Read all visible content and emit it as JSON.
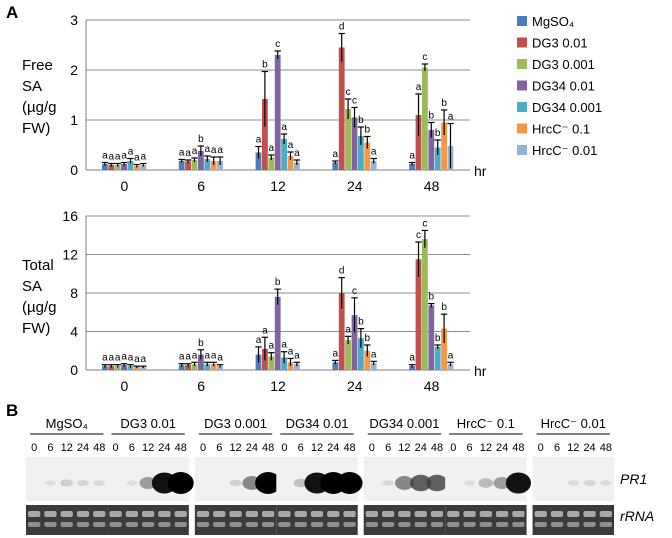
{
  "panels": {
    "a_label": "A",
    "b_label": "B",
    "hr_unit": "hr"
  },
  "chart_data": [
    {
      "type": "bar",
      "title": "",
      "ylabel_lines": [
        "Free",
        "SA",
        "(µg/g",
        "FW)"
      ],
      "xlabel": "hr",
      "categories": [
        "0",
        "6",
        "12",
        "24",
        "48"
      ],
      "ylim": [
        0,
        3
      ],
      "yticks": [
        "0",
        "1",
        "2",
        "3"
      ],
      "grid": true,
      "series": [
        {
          "name": "MgSO₄",
          "values": [
            0.12,
            0.18,
            0.35,
            0.15,
            0.12
          ],
          "errors": [
            0.03,
            0.03,
            0.12,
            0.03,
            0.03
          ],
          "letters": [
            "a",
            "a",
            "a",
            "a",
            "a"
          ]
        },
        {
          "name": "DG3 0.01",
          "values": [
            0.1,
            0.17,
            1.42,
            2.45,
            1.1
          ],
          "errors": [
            0.03,
            0.03,
            0.55,
            0.28,
            0.42
          ],
          "letters": [
            "a",
            "a",
            "b",
            "d",
            "a"
          ]
        },
        {
          "name": "DG3 0.001",
          "values": [
            0.1,
            0.2,
            0.25,
            1.22,
            2.05
          ],
          "errors": [
            0.03,
            0.04,
            0.05,
            0.2,
            0.07
          ],
          "letters": [
            "a",
            "a",
            "a",
            "c",
            "c"
          ]
        },
        {
          "name": "DG34 0.01",
          "values": [
            0.12,
            0.38,
            2.3,
            1.05,
            0.8
          ],
          "errors": [
            0.03,
            0.1,
            0.08,
            0.2,
            0.15
          ],
          "letters": [
            "a",
            "b",
            "c",
            "c",
            "b"
          ]
        },
        {
          "name": "DG34 0.001",
          "values": [
            0.18,
            0.22,
            0.62,
            0.68,
            0.45
          ],
          "errors": [
            0.05,
            0.06,
            0.1,
            0.18,
            0.15
          ],
          "letters": [
            "a",
            "a",
            "a",
            "b",
            "b"
          ]
        },
        {
          "name": "HrcC⁻ 0.1",
          "values": [
            0.08,
            0.18,
            0.28,
            0.55,
            0.95
          ],
          "errors": [
            0.03,
            0.08,
            0.08,
            0.12,
            0.25
          ],
          "letters": [
            "a",
            "a",
            "a",
            "b",
            "b"
          ]
        },
        {
          "name": "HrcC⁻ 0.01",
          "values": [
            0.1,
            0.18,
            0.15,
            0.18,
            0.48
          ],
          "errors": [
            0.03,
            0.08,
            0.05,
            0.05,
            0.45
          ],
          "letters": [
            "a",
            "a",
            "a",
            "a",
            "a"
          ]
        }
      ]
    },
    {
      "type": "bar",
      "title": "",
      "ylabel_lines": [
        "Total",
        "SA",
        "(µg/g",
        "FW)"
      ],
      "xlabel": "hr",
      "categories": [
        "0",
        "6",
        "12",
        "24",
        "48"
      ],
      "ylim": [
        0,
        16
      ],
      "yticks": [
        "0",
        "4",
        "8",
        "12",
        "16"
      ],
      "grid": true,
      "series": [
        {
          "name": "MgSO₄",
          "values": [
            0.4,
            0.5,
            1.6,
            0.8,
            0.4
          ],
          "errors": [
            0.15,
            0.15,
            0.8,
            0.2,
            0.15
          ],
          "letters": [
            "a",
            "a",
            "a",
            "a",
            "a"
          ]
        },
        {
          "name": "DG3 0.01",
          "values": [
            0.4,
            0.5,
            2.2,
            8.0,
            11.5
          ],
          "errors": [
            0.15,
            0.15,
            1.2,
            1.6,
            1.8
          ],
          "letters": [
            "a",
            "a",
            "a",
            "d",
            "c"
          ]
        },
        {
          "name": "DG3 0.001",
          "values": [
            0.4,
            0.6,
            1.4,
            3.1,
            13.6
          ],
          "errors": [
            0.15,
            0.2,
            0.4,
            0.4,
            0.9
          ],
          "letters": [
            "a",
            "a",
            "a",
            "a",
            "c"
          ]
        },
        {
          "name": "DG34 0.01",
          "values": [
            0.5,
            1.6,
            7.6,
            5.7,
            6.7
          ],
          "errors": [
            0.15,
            0.5,
            0.8,
            1.8,
            0.2
          ],
          "letters": [
            "a",
            "b",
            "b",
            "c",
            "b"
          ]
        },
        {
          "name": "DG34 0.001",
          "values": [
            0.4,
            0.6,
            1.3,
            3.3,
            2.4
          ],
          "errors": [
            0.15,
            0.2,
            0.6,
            1.0,
            0.2
          ],
          "letters": [
            "a",
            "a",
            "a",
            "b",
            "b"
          ]
        },
        {
          "name": "HrcC⁻ 0.1",
          "values": [
            0.3,
            0.6,
            0.8,
            2.0,
            4.3
          ],
          "errors": [
            0.1,
            0.2,
            0.4,
            0.6,
            1.5
          ],
          "letters": [
            "a",
            "a",
            "a",
            "b",
            "b"
          ]
        },
        {
          "name": "HrcC⁻ 0.01",
          "values": [
            0.3,
            0.4,
            0.6,
            0.7,
            0.6
          ],
          "errors": [
            0.1,
            0.15,
            0.2,
            0.2,
            0.2
          ],
          "letters": [
            "a",
            "a",
            "a",
            "a",
            "a"
          ]
        }
      ]
    }
  ],
  "legend": [
    {
      "label": "MgSO₄",
      "color": "#4a7ebb"
    },
    {
      "label": "DG3 0.01",
      "color": "#c0504d"
    },
    {
      "label": "DG3 0.001",
      "color": "#9bbb59"
    },
    {
      "label": "DG34 0.01",
      "color": "#8064a2"
    },
    {
      "label": "DG34 0.001",
      "color": "#4bacc6"
    },
    {
      "label": "HrcC⁻ 0.1",
      "color": "#f79646"
    },
    {
      "label": "HrcC⁻ 0.01",
      "color": "#95b3d7"
    }
  ],
  "blot": {
    "groups": [
      "MgSO₄",
      "DG3 0.01",
      "DG3 0.001",
      "DG34 0.01",
      "DG34 0.001",
      "HrcC⁻ 0.1",
      "HrcC⁻ 0.01"
    ],
    "lanes": [
      "0",
      "6",
      "12",
      "24",
      "48"
    ],
    "rows": [
      "PR1",
      "rRNA"
    ],
    "pr1_intensity": [
      [
        0.0,
        0.05,
        0.18,
        0.12,
        0.1
      ],
      [
        0.0,
        0.05,
        0.45,
        0.95,
        1.0
      ],
      [
        0.0,
        0.0,
        0.15,
        0.55,
        1.0
      ],
      [
        0.0,
        0.25,
        0.95,
        1.0,
        1.0
      ],
      [
        0.0,
        0.1,
        0.55,
        0.7,
        0.7
      ],
      [
        0.0,
        0.05,
        0.3,
        0.45,
        0.95
      ],
      [
        0.0,
        0.0,
        0.08,
        0.12,
        0.08
      ]
    ]
  }
}
